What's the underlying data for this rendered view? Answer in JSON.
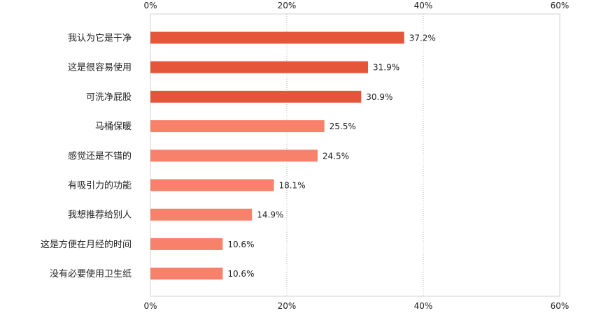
{
  "chart_data": {
    "type": "bar",
    "orientation": "horizontal",
    "categories": [
      "我认为它是干净",
      "这是很容易使用",
      "可洗净屁股",
      "马桶保暖",
      "感觉还是不错的",
      "有吸引力的功能",
      "我想推荐给别人",
      "这是方便在月经的时间",
      "没有必要使用卫生纸"
    ],
    "values": [
      37.2,
      31.9,
      30.9,
      25.5,
      24.5,
      18.1,
      14.9,
      10.6,
      10.6
    ],
    "value_labels": [
      "37.2%",
      "31.9%",
      "30.9%",
      "25.5%",
      "24.5%",
      "18.1%",
      "14.9%",
      "10.6%",
      "10.6%"
    ],
    "highlight_top_n": 3,
    "xlim": [
      0,
      60
    ],
    "ticks": [
      0,
      20,
      40,
      60
    ],
    "tick_labels": [
      "0%",
      "20%",
      "40%",
      "60%"
    ],
    "tick_labels_position": "top and bottom",
    "grid": "vertical dotted",
    "colors": {
      "highlight": "#e5553a",
      "normal": "#f7816a",
      "grid": "#b5b5b5",
      "frame": "#d0d0d0",
      "text": "#222222"
    }
  }
}
